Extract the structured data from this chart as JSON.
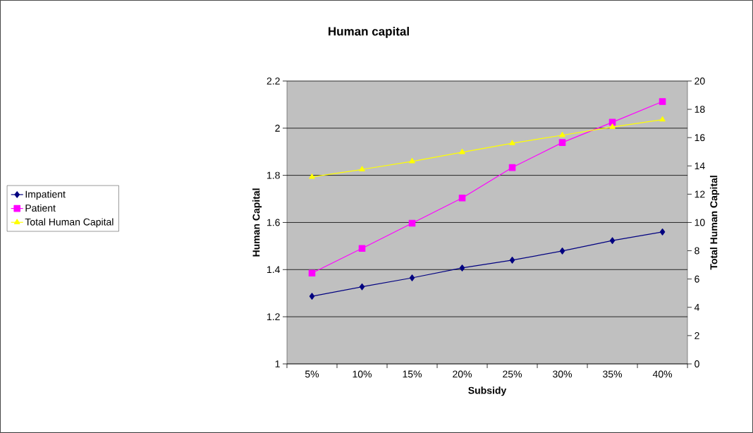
{
  "chart_data": {
    "type": "line",
    "title": "Human capital",
    "xlabel": "Subsidy",
    "ylabel": "Human Capital",
    "y2label": "Total Human Capital",
    "categories": [
      "5%",
      "10%",
      "15%",
      "20%",
      "25%",
      "30%",
      "35%",
      "40%"
    ],
    "series": [
      {
        "name": "Impatient",
        "color": "#000080",
        "marker": "diamond",
        "values": [
          1.287,
          1.327,
          1.365,
          1.407,
          1.44,
          1.479,
          1.523,
          1.56
        ]
      },
      {
        "name": "Patient",
        "color": "#ff00ff",
        "marker": "square",
        "values": [
          1.385,
          1.49,
          1.597,
          1.704,
          1.833,
          1.939,
          2.025,
          2.113
        ]
      },
      {
        "name": "Total Human Capital",
        "color": "#ffff00",
        "marker": "triangle",
        "axis": "y2",
        "values": [
          13.22,
          13.75,
          14.32,
          14.97,
          15.6,
          16.17,
          16.75,
          17.27
        ]
      }
    ],
    "ylim": [
      1,
      2.2
    ],
    "yticks": [
      1,
      1.2,
      1.4,
      1.6,
      1.8,
      2,
      2.2
    ],
    "y2lim": [
      0,
      20
    ],
    "y2ticks": [
      0,
      2,
      4,
      6,
      8,
      10,
      12,
      14,
      16,
      18,
      20
    ],
    "grid": "y",
    "legend": "left"
  }
}
